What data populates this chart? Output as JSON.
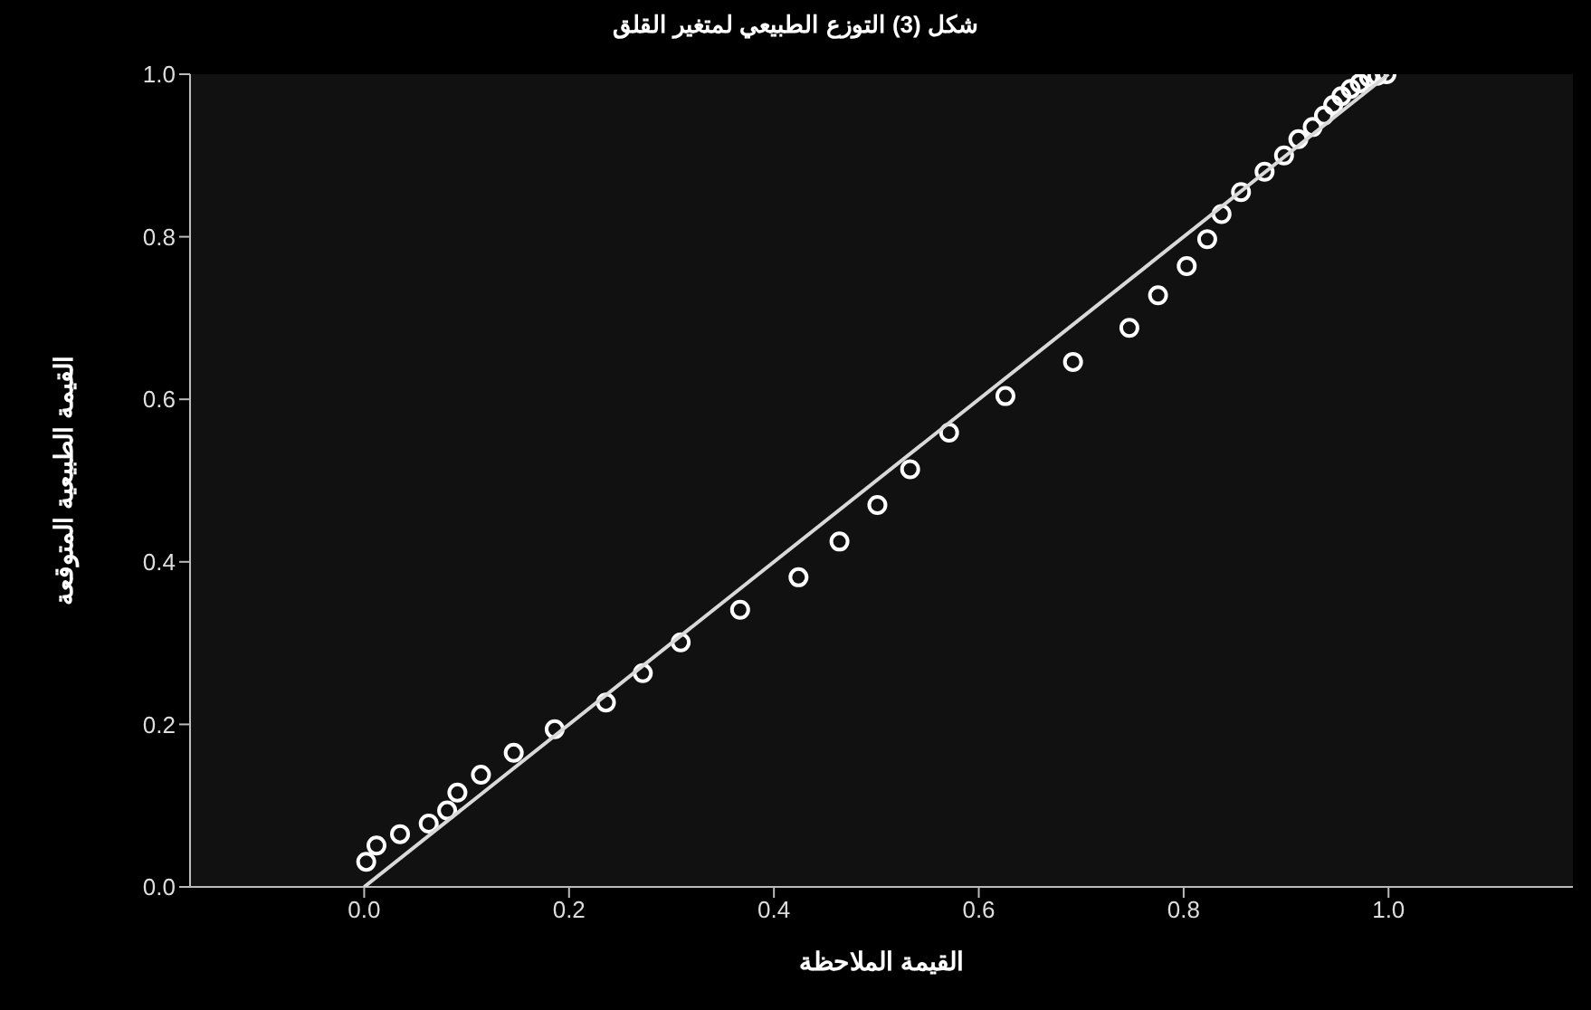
{
  "chart_data": {
    "type": "scatter",
    "title": "شكل (3) التوزع الطبيعي لمتغير القلق",
    "xlabel": "القيمة الملاحظة",
    "ylabel": "القيمة الطبيعية المتوقعة",
    "xlim": [
      -0.17,
      1.18
    ],
    "ylim": [
      0,
      1
    ],
    "xticks": [
      {
        "value": 0,
        "label": "0.0"
      },
      {
        "value": 0.2,
        "label": "0.2"
      },
      {
        "value": 0.4,
        "label": "0.4"
      },
      {
        "value": 0.6,
        "label": "0.6"
      },
      {
        "value": 0.8,
        "label": "0.8"
      },
      {
        "value": 1,
        "label": "1.0"
      }
    ],
    "yticks": [
      {
        "value": 0,
        "label": "0.0"
      },
      {
        "value": 0.2,
        "label": "0.2"
      },
      {
        "value": 0.4,
        "label": "0.4"
      },
      {
        "value": 0.6,
        "label": "0.6"
      },
      {
        "value": 0.8,
        "label": "0.8"
      },
      {
        "value": 1,
        "label": "1.0"
      }
    ],
    "grid": false,
    "marker": "circle",
    "series": [
      {
        "color": "#ffffff",
        "x": [
          0.002,
          0.012,
          0.035,
          0.063,
          0.081,
          0.091,
          0.114,
          0.146,
          0.186,
          0.236,
          0.272,
          0.309,
          0.367,
          0.424,
          0.464,
          0.501,
          0.533,
          0.571,
          0.626,
          0.692,
          0.747,
          0.775,
          0.803,
          0.823,
          0.837,
          0.856,
          0.879,
          0.898,
          0.912,
          0.926,
          0.937,
          0.946,
          0.954,
          0.963,
          0.972,
          0.981,
          0.989,
          0.998
        ],
        "values": [
          0.031,
          0.051,
          0.065,
          0.078,
          0.094,
          0.116,
          0.138,
          0.165,
          0.194,
          0.227,
          0.263,
          0.301,
          0.341,
          0.381,
          0.425,
          0.47,
          0.514,
          0.559,
          0.604,
          0.646,
          0.688,
          0.728,
          0.764,
          0.797,
          0.828,
          0.855,
          0.88,
          0.9,
          0.92,
          0.935,
          0.949,
          0.962,
          0.973,
          0.982,
          0.989,
          0.996,
          0.998,
          1.0
        ]
      },
      {
        "type": "line",
        "marker": "none",
        "color": "#d9d9d9",
        "x": [
          0,
          1
        ],
        "values": [
          0,
          1
        ]
      }
    ]
  }
}
